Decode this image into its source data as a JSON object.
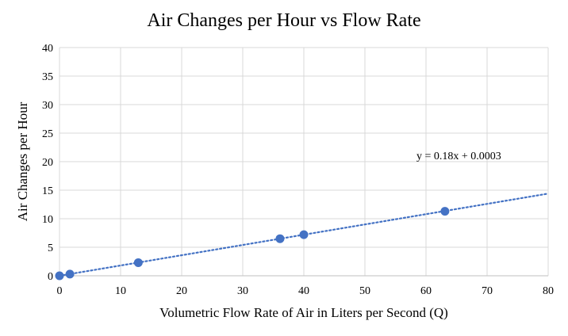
{
  "chart_data": {
    "type": "scatter",
    "title": "Air Changes per Hour vs Flow Rate",
    "xlabel": "Volumetric Flow Rate of Air in Liters per Second (Q)",
    "ylabel": "Air Changes per Hour",
    "xlim": [
      0,
      80
    ],
    "ylim": [
      0,
      40
    ],
    "xticks": [
      "0",
      "10",
      "20",
      "30",
      "40",
      "50",
      "60",
      "70",
      "80"
    ],
    "yticks": [
      "0",
      "5",
      "10",
      "15",
      "20",
      "25",
      "30",
      "35",
      "40"
    ],
    "grid": true,
    "series": [
      {
        "color": "#4472C4",
        "x": [
          0,
          1.7,
          12.9,
          36.1,
          40.0,
          63.1
        ],
        "y": [
          0,
          0.3,
          2.3,
          6.5,
          7.2,
          11.3
        ]
      }
    ],
    "trendline": {
      "type": "linear",
      "slope": 0.18,
      "intercept": 0.0003,
      "label": "y = 0.18x + 0.0003",
      "color": "#4472C4",
      "style": "dotted"
    }
  }
}
